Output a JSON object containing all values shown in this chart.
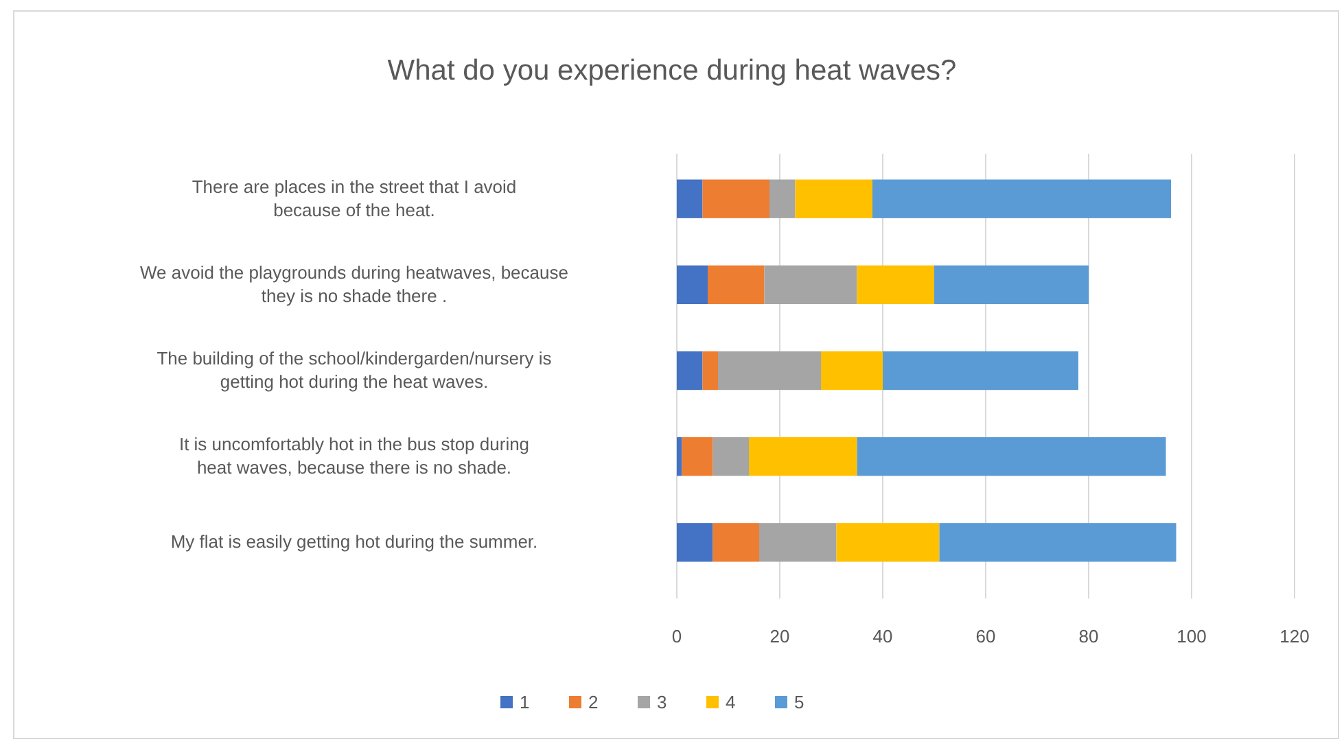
{
  "chart_data": {
    "type": "bar",
    "orientation": "horizontal",
    "stacked": true,
    "title": "What do you experience during heat waves?",
    "categories": [
      "There are places in the street that I avoid because of the heat.",
      "We avoid the playgrounds during heatwaves, because they is no shade there .",
      "The building of the school/kindergarden/nursery is getting hot during the heat waves.",
      "It is uncomfortably hot in the bus stop during heat waves, because there is no shade.",
      "My flat is easily getting hot during the summer."
    ],
    "series": [
      {
        "name": "1",
        "color": "#4472c4",
        "values": [
          5,
          6,
          5,
          1,
          7
        ]
      },
      {
        "name": "2",
        "color": "#ed7d31",
        "values": [
          13,
          11,
          3,
          6,
          9
        ]
      },
      {
        "name": "3",
        "color": "#a5a5a5",
        "values": [
          5,
          18,
          20,
          7,
          15
        ]
      },
      {
        "name": "4",
        "color": "#ffc000",
        "values": [
          15,
          15,
          12,
          21,
          20
        ]
      },
      {
        "name": "5",
        "color": "#5b9bd5",
        "values": [
          58,
          30,
          38,
          60,
          46
        ]
      }
    ],
    "xlim": [
      0,
      120
    ],
    "xticks": [
      0,
      20,
      40,
      60,
      80,
      100,
      120
    ],
    "grid": "x",
    "legend": "bottom"
  }
}
